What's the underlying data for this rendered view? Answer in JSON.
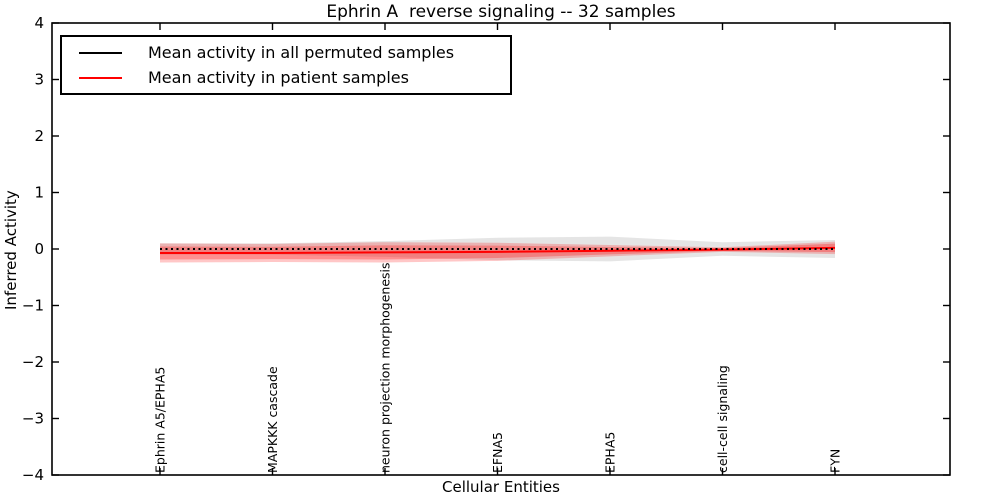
{
  "title": "Ephrin A  reverse signaling -- 32 samples",
  "axes": {
    "xlabel": "Cellular Entities",
    "ylabel": "Inferred Activity",
    "yticklabels": [
      "4",
      "3",
      "2",
      "1",
      "0",
      "−1",
      "−2",
      "−3",
      "−4"
    ]
  },
  "legend": {
    "items": [
      {
        "label": "Mean activity in all permuted samples",
        "color": "#000000"
      },
      {
        "label": "Mean activity in patient samples",
        "color": "#ff0000"
      }
    ]
  },
  "chart_data": {
    "type": "line",
    "title": "Ephrin A  reverse signaling -- 32 samples",
    "xlabel": "Cellular Entities",
    "ylabel": "Inferred Activity",
    "ylim": [
      -4,
      4
    ],
    "yticks": [
      4,
      3,
      2,
      1,
      0,
      -1,
      -2,
      -3,
      -4
    ],
    "grid": false,
    "legend_position": "upper left",
    "categories": [
      "Ephrin A5/EPHA5",
      "MAPKKK cascade",
      "neuron projection morphogenesis",
      "EFNA5",
      "EPHA5",
      "cell-cell signaling",
      "FYN"
    ],
    "series": [
      {
        "name": "Mean activity in all permuted samples",
        "color": "#000000",
        "line_style": "dotted",
        "values": [
          0.0,
          0.0,
          0.0,
          0.0,
          0.0,
          0.0,
          0.0
        ],
        "band_halfwidth": [
          0.1,
          0.1,
          0.14,
          0.2,
          0.22,
          0.12,
          0.16
        ],
        "band_color": "#000000",
        "band_alpha": 0.1
      },
      {
        "name": "Mean activity in patient samples",
        "color": "#ff0000",
        "line_style": "solid",
        "values": [
          -0.07,
          -0.07,
          -0.06,
          -0.05,
          -0.03,
          -0.01,
          0.02
        ],
        "band_halfwidth_outer": [
          0.17,
          0.16,
          0.18,
          0.16,
          0.1,
          0.04,
          0.11
        ],
        "band_halfwidth_inner": [
          0.115,
          0.11,
          0.125,
          0.11,
          0.065,
          0.025,
          0.075
        ],
        "band_color": "#ff0000",
        "band_alpha_outer": 0.22,
        "band_alpha_inner": 0.28
      }
    ]
  }
}
